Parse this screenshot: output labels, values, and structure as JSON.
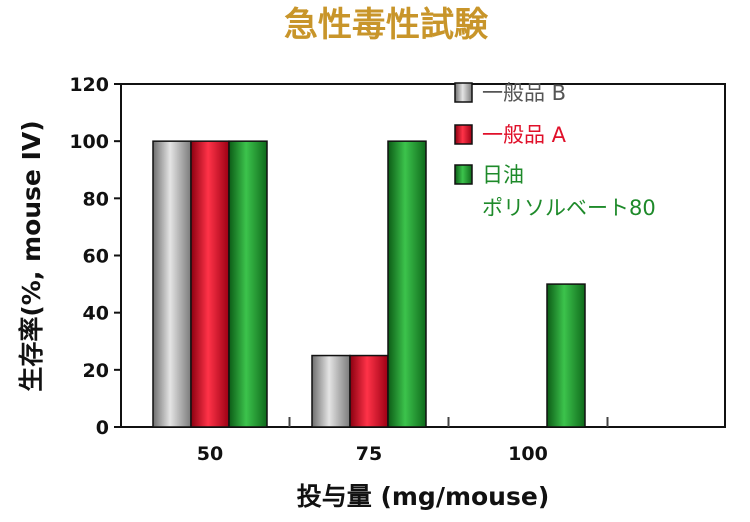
{
  "chart_data": {
    "type": "bar",
    "title": "急性毒性試験",
    "xlabel": "投与量 (mg/mouse)",
    "ylabel": "生存率(%, mouse IV)",
    "categories": [
      "50",
      "75",
      "100"
    ],
    "ylim": [
      0,
      120
    ],
    "yticks": [
      0,
      20,
      40,
      60,
      80,
      100,
      120
    ],
    "grid": false,
    "legend_position": "top-right",
    "series": [
      {
        "name": "一般品 B",
        "values": [
          100,
          25,
          0
        ],
        "color": "#a9a9a9",
        "label_color": "#555555"
      },
      {
        "name": "一般品 A",
        "values": [
          100,
          25,
          0
        ],
        "color": "#e0102a",
        "label_color": "#e0102a"
      },
      {
        "name": "日油\nポリソルベート80",
        "values": [
          100,
          100,
          50
        ],
        "color": "#1e9a2e",
        "label_color": "#1e8a2a"
      }
    ]
  }
}
